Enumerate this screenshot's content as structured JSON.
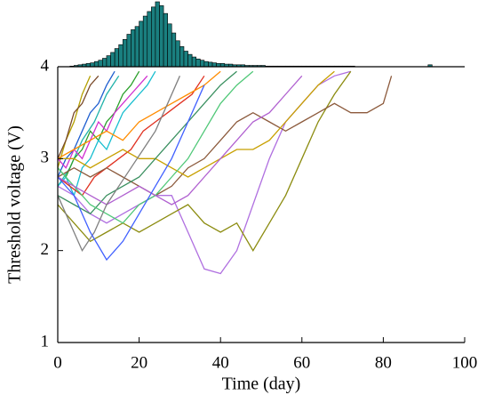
{
  "chart_data": [
    {
      "type": "line",
      "xlabel": "Time (day)",
      "ylabel": "Threshold voltage (V)",
      "xlim": [
        0,
        100
      ],
      "ylim": [
        1,
        4
      ],
      "xticks": [
        0,
        20,
        40,
        60,
        80,
        100
      ],
      "yticks": [
        1,
        2,
        3,
        4
      ],
      "series": [
        {
          "color": "#b5a000",
          "x": [
            0,
            2,
            4,
            6,
            8
          ],
          "values": [
            2.9,
            3.2,
            3.4,
            3.7,
            3.9
          ]
        },
        {
          "color": "#7a4a2a",
          "x": [
            0,
            2,
            4,
            6,
            8,
            10
          ],
          "values": [
            3.0,
            3.2,
            3.5,
            3.6,
            3.8,
            3.9
          ]
        },
        {
          "color": "#1f5fd0",
          "x": [
            0,
            2,
            4,
            6,
            8,
            10,
            12,
            14
          ],
          "values": [
            2.8,
            3.0,
            3.1,
            3.3,
            3.5,
            3.6,
            3.8,
            3.95
          ]
        },
        {
          "color": "#20b2aa",
          "x": [
            0,
            3,
            6,
            9,
            12,
            15
          ],
          "values": [
            2.7,
            2.9,
            3.2,
            3.4,
            3.7,
            3.9
          ]
        },
        {
          "color": "#2ca02c",
          "x": [
            0,
            2,
            4,
            6,
            8,
            10,
            12,
            14,
            16,
            18,
            20
          ],
          "values": [
            2.9,
            2.8,
            3.0,
            3.1,
            3.3,
            3.2,
            3.4,
            3.5,
            3.7,
            3.8,
            3.95
          ]
        },
        {
          "color": "#d030d0",
          "x": [
            0,
            2,
            4,
            6,
            8,
            10,
            12,
            14,
            16,
            18,
            20,
            22
          ],
          "values": [
            3.0,
            2.9,
            3.1,
            3.0,
            3.2,
            3.4,
            3.3,
            3.5,
            3.6,
            3.7,
            3.8,
            3.9
          ]
        },
        {
          "color": "#17becf",
          "x": [
            0,
            2,
            4,
            6,
            8,
            10,
            12,
            14,
            16,
            18,
            20,
            22,
            24
          ],
          "values": [
            2.7,
            2.8,
            2.6,
            2.9,
            3.0,
            3.2,
            3.1,
            3.3,
            3.5,
            3.6,
            3.7,
            3.8,
            3.95
          ]
        },
        {
          "color": "#e03020",
          "x": [
            0,
            3,
            6,
            9,
            12,
            15,
            18,
            21,
            24,
            27,
            30,
            33,
            36
          ],
          "values": [
            2.8,
            2.7,
            2.6,
            2.8,
            2.9,
            3.0,
            3.1,
            3.3,
            3.4,
            3.5,
            3.6,
            3.7,
            3.9
          ]
        },
        {
          "color": "#b070e0",
          "x": [
            0,
            4,
            8,
            12,
            16,
            20,
            24,
            28,
            32,
            36,
            40,
            44,
            48,
            52,
            56,
            60,
            64,
            68,
            72
          ],
          "values": [
            2.7,
            2.6,
            2.4,
            2.3,
            2.4,
            2.5,
            2.6,
            2.6,
            2.2,
            1.8,
            1.75,
            2.0,
            2.5,
            3.0,
            3.4,
            3.6,
            3.8,
            3.9,
            3.95
          ]
        },
        {
          "color": "#8c8c10",
          "x": [
            0,
            4,
            8,
            12,
            16,
            20,
            24,
            28,
            32,
            36,
            40,
            44,
            48,
            52,
            56,
            60,
            64,
            68,
            72
          ],
          "values": [
            2.5,
            2.3,
            2.1,
            2.2,
            2.3,
            2.2,
            2.3,
            2.4,
            2.5,
            2.3,
            2.2,
            2.3,
            2.0,
            2.3,
            2.6,
            3.0,
            3.4,
            3.7,
            3.95
          ]
        },
        {
          "color": "#8c5a3c",
          "x": [
            0,
            4,
            8,
            12,
            16,
            20,
            24,
            28,
            32,
            36,
            40,
            44,
            48,
            52,
            56,
            60,
            64,
            68,
            72,
            76,
            80,
            82
          ],
          "values": [
            2.8,
            2.9,
            2.8,
            2.9,
            2.8,
            2.7,
            2.6,
            2.7,
            2.9,
            3.0,
            3.2,
            3.4,
            3.5,
            3.4,
            3.3,
            3.4,
            3.5,
            3.6,
            3.5,
            3.5,
            3.6,
            3.9
          ]
        },
        {
          "color": "#c8a000",
          "x": [
            0,
            4,
            8,
            12,
            16,
            20,
            24,
            28,
            32,
            36,
            40,
            44,
            48,
            52,
            56,
            60,
            64,
            68
          ],
          "values": [
            3.0,
            3.0,
            2.9,
            3.0,
            3.1,
            3.0,
            3.0,
            2.9,
            2.8,
            2.9,
            3.0,
            3.1,
            3.1,
            3.2,
            3.4,
            3.6,
            3.8,
            3.95
          ]
        },
        {
          "color": "#ff8c00",
          "x": [
            0,
            4,
            8,
            12,
            16,
            20,
            24,
            28,
            32,
            36,
            40
          ],
          "values": [
            3.0,
            3.1,
            3.2,
            3.3,
            3.2,
            3.4,
            3.5,
            3.6,
            3.7,
            3.8,
            3.95
          ]
        },
        {
          "color": "#3a9060",
          "x": [
            0,
            4,
            8,
            12,
            16,
            20,
            24,
            28,
            32,
            36,
            40,
            44
          ],
          "values": [
            2.6,
            2.5,
            2.4,
            2.6,
            2.7,
            2.8,
            3.0,
            3.2,
            3.4,
            3.6,
            3.8,
            3.95
          ]
        },
        {
          "color": "#50c878",
          "x": [
            0,
            4,
            8,
            12,
            16,
            20,
            24,
            28,
            32,
            36,
            40,
            44,
            48
          ],
          "values": [
            2.9,
            2.7,
            2.5,
            2.4,
            2.3,
            2.5,
            2.6,
            2.8,
            3.0,
            3.3,
            3.6,
            3.8,
            3.95
          ]
        },
        {
          "color": "#b060d0",
          "x": [
            0,
            4,
            8,
            12,
            16,
            20,
            24,
            28,
            32,
            36,
            40,
            44,
            48,
            52,
            56,
            60
          ],
          "values": [
            2.8,
            2.7,
            2.6,
            2.5,
            2.6,
            2.7,
            2.6,
            2.5,
            2.6,
            2.8,
            3.0,
            3.2,
            3.4,
            3.5,
            3.7,
            3.9
          ]
        },
        {
          "color": "#808080",
          "x": [
            0,
            3,
            6,
            9,
            12,
            15,
            18,
            21,
            24,
            27,
            30
          ],
          "values": [
            2.6,
            2.3,
            2.0,
            2.2,
            2.5,
            2.7,
            2.9,
            3.1,
            3.3,
            3.6,
            3.9
          ]
        },
        {
          "color": "#4060ff",
          "x": [
            0,
            4,
            8,
            12,
            16,
            20,
            24,
            28,
            32,
            36
          ],
          "values": [
            2.8,
            2.6,
            2.2,
            1.9,
            2.1,
            2.4,
            2.7,
            3.0,
            3.4,
            3.8
          ]
        }
      ]
    },
    {
      "type": "histogram",
      "color": "#1a7f7f",
      "ylim": [
        0,
        100
      ],
      "bins": [
        0,
        1,
        2,
        3,
        4,
        5,
        6,
        7,
        8,
        9,
        10,
        11,
        12,
        13,
        14,
        15,
        16,
        17,
        18,
        19,
        20,
        21,
        22,
        23,
        24,
        25,
        26,
        27,
        28,
        29,
        30,
        31,
        32,
        33,
        34,
        35,
        36,
        37,
        38,
        39,
        40,
        41,
        42,
        43,
        44,
        45,
        46,
        47,
        48,
        49,
        50,
        51,
        52,
        53,
        54,
        55,
        56,
        57,
        58,
        59,
        60,
        61,
        62,
        63,
        64,
        65,
        66,
        67,
        68,
        69,
        70,
        71,
        72,
        73,
        74,
        75,
        76,
        77,
        78,
        79,
        80,
        81,
        82,
        83,
        84,
        85,
        86,
        87,
        88,
        89,
        90,
        91,
        92
      ],
      "counts": [
        0,
        0,
        0,
        1,
        2,
        3,
        4,
        5,
        6,
        8,
        10,
        13,
        17,
        22,
        28,
        34,
        42,
        50,
        57,
        62,
        70,
        78,
        85,
        92,
        100,
        94,
        82,
        66,
        52,
        40,
        31,
        24,
        19,
        15,
        12,
        10,
        8,
        7,
        6,
        5,
        5,
        4,
        4,
        3,
        3,
        3,
        2,
        2,
        2,
        2,
        2,
        1,
        1,
        1,
        1,
        1,
        1,
        1,
        1,
        1,
        1,
        1,
        1,
        1,
        1,
        1,
        1,
        1,
        1,
        1,
        1,
        1,
        1,
        0,
        0,
        0,
        0,
        0,
        0,
        0,
        0,
        0,
        0,
        0,
        0,
        0,
        0,
        0,
        0,
        0,
        0,
        3
      ]
    }
  ]
}
